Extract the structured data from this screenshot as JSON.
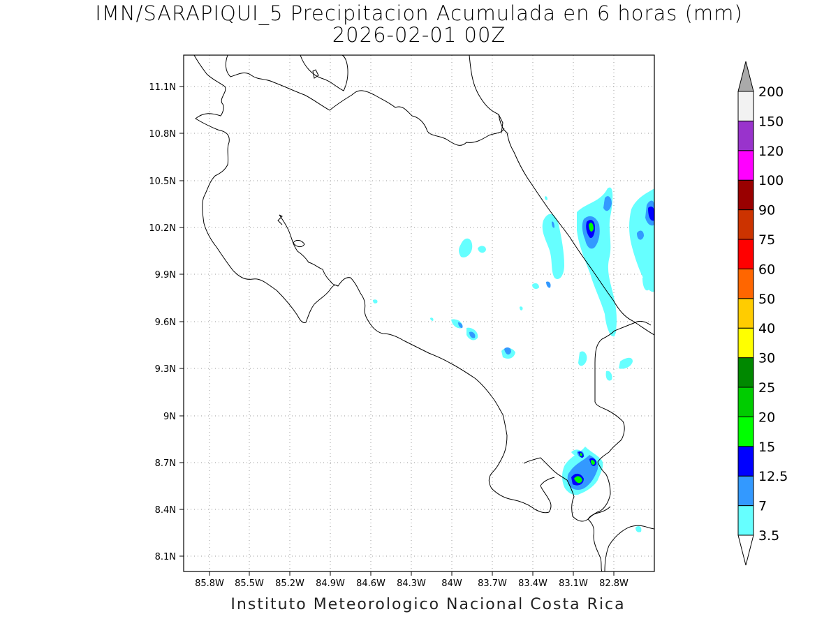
{
  "title": {
    "line1": "IMN/SARAPIQUI_5 Precipitacion Acumulada en 6 horas (mm)",
    "line2": "2026-02-01 00Z"
  },
  "footer": "Instituto Meteorologico Nacional Costa Rica",
  "axes": {
    "lon_ticks": [
      "85.8W",
      "85.5W",
      "85.2W",
      "84.9W",
      "84.6W",
      "84.3W",
      "84W",
      "83.7W",
      "83.4W",
      "83.1W",
      "82.8W"
    ],
    "lat_ticks": [
      "11.1N",
      "10.8N",
      "10.5N",
      "10.2N",
      "9.9N",
      "9.6N",
      "9.3N",
      "9N",
      "8.7N",
      "8.4N",
      "8.1N"
    ]
  },
  "colorbar": {
    "levels": [
      "3.5",
      "7",
      "12.5",
      "15",
      "20",
      "25",
      "30",
      "40",
      "50",
      "60",
      "75",
      "90",
      "100",
      "120",
      "150",
      "200"
    ],
    "colors": [
      "#66ffff",
      "#3399ff",
      "#0000ff",
      "#00ff00",
      "#00cc00",
      "#008800",
      "#ffff00",
      "#ffcc00",
      "#ff6600",
      "#ff0000",
      "#cc3300",
      "#990000",
      "#ff00ff",
      "#9933cc",
      "#f2f2f2",
      "#aaaaaa"
    ]
  },
  "precip_colors": {
    "light": "#66ffff",
    "moderate": "#3399ff",
    "heavy": "#0000ff",
    "green": "#00ff00",
    "dark_green": "#00cc00"
  }
}
